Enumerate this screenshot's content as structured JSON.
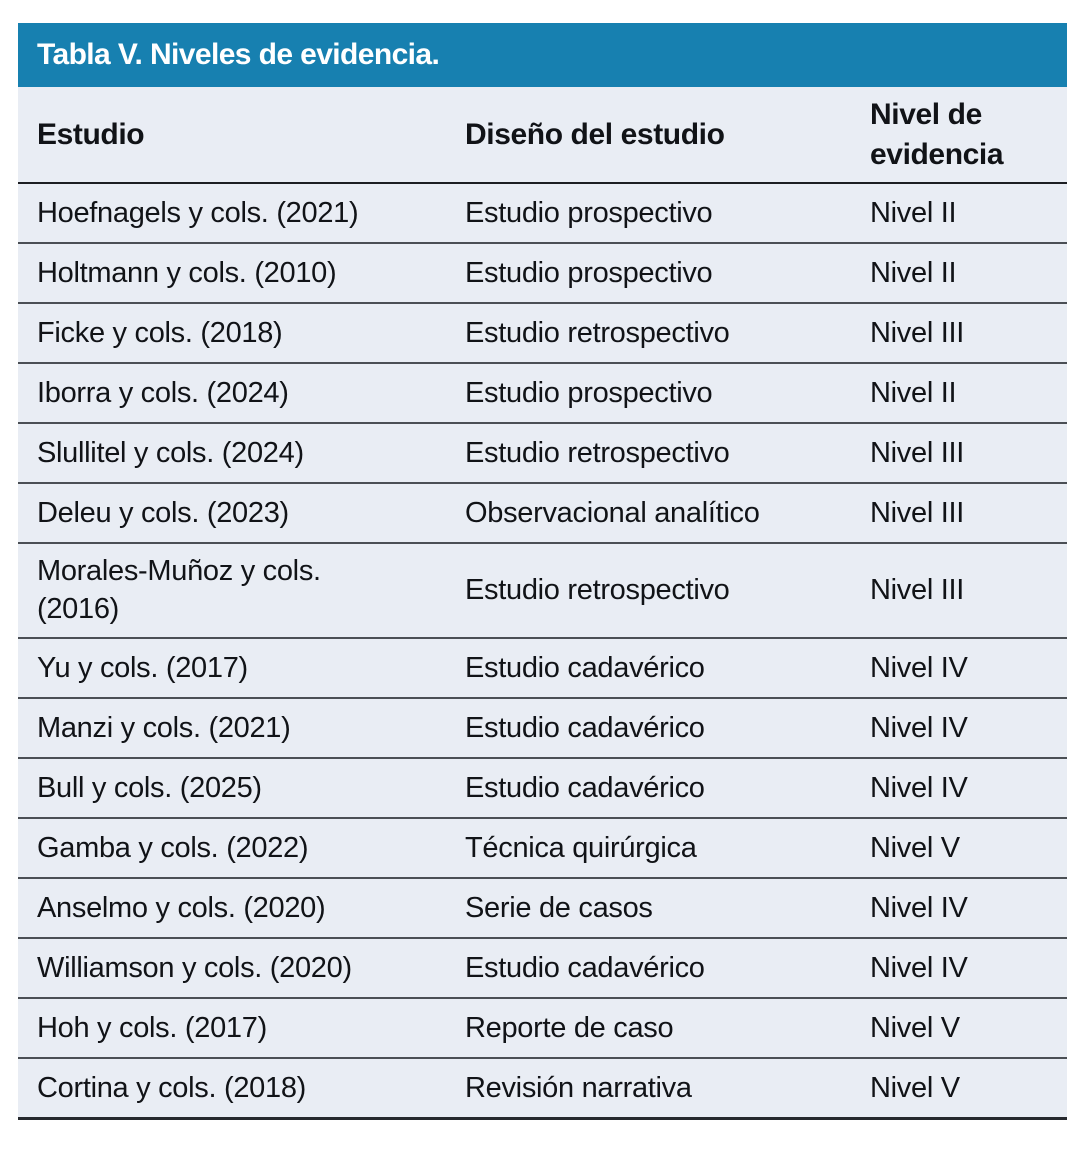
{
  "table": {
    "title": "Tabla V. Niveles de evidencia.",
    "columns": [
      "Estudio",
      "Diseño del estudio",
      "Nivel de evidencia"
    ],
    "rows": [
      {
        "estudio": "Hoefnagels y cols. (2021)",
        "diseno": "Estudio prospectivo",
        "nivel": "Nivel II"
      },
      {
        "estudio": "Holtmann y cols. (2010)",
        "diseno": "Estudio prospectivo",
        "nivel": "Nivel II"
      },
      {
        "estudio": "Ficke y cols. (2018)",
        "diseno": "Estudio retrospectivo",
        "nivel": "Nivel III"
      },
      {
        "estudio": "Iborra y cols. (2024)",
        "diseno": "Estudio prospectivo",
        "nivel": "Nivel II"
      },
      {
        "estudio": "Slullitel y cols. (2024)",
        "diseno": "Estudio retrospectivo",
        "nivel": "Nivel III"
      },
      {
        "estudio": "Deleu y cols. (2023)",
        "diseno": "Observacional analítico",
        "nivel": "Nivel III"
      },
      {
        "estudio": "Morales-Muñoz y cols.\n(2016)",
        "diseno": "Estudio retrospectivo",
        "nivel": "Nivel III"
      },
      {
        "estudio": "Yu y cols. (2017)",
        "diseno": "Estudio cadavérico",
        "nivel": "Nivel IV"
      },
      {
        "estudio": "Manzi y cols. (2021)",
        "diseno": "Estudio cadavérico",
        "nivel": "Nivel IV"
      },
      {
        "estudio": "Bull y cols. (2025)",
        "diseno": "Estudio cadavérico",
        "nivel": "Nivel IV"
      },
      {
        "estudio": "Gamba y cols. (2022)",
        "diseno": "Técnica quirúrgica",
        "nivel": "Nivel V"
      },
      {
        "estudio": "Anselmo y cols. (2020)",
        "diseno": "Serie de casos",
        "nivel": "Nivel IV"
      },
      {
        "estudio": "Williamson y cols. (2020)",
        "diseno": "Estudio cadavérico",
        "nivel": "Nivel IV"
      },
      {
        "estudio": "Hoh y cols. (2017)",
        "diseno": "Reporte de caso",
        "nivel": "Nivel V"
      },
      {
        "estudio": "Cortina y cols. (2018)",
        "diseno": "Revisión narrativa",
        "nivel": "Nivel V"
      }
    ]
  },
  "colors": {
    "accent_header_bar": "#1780b0",
    "body_background": "#e9edf4",
    "text": "#111317",
    "row_divider": "#4b4f55"
  }
}
